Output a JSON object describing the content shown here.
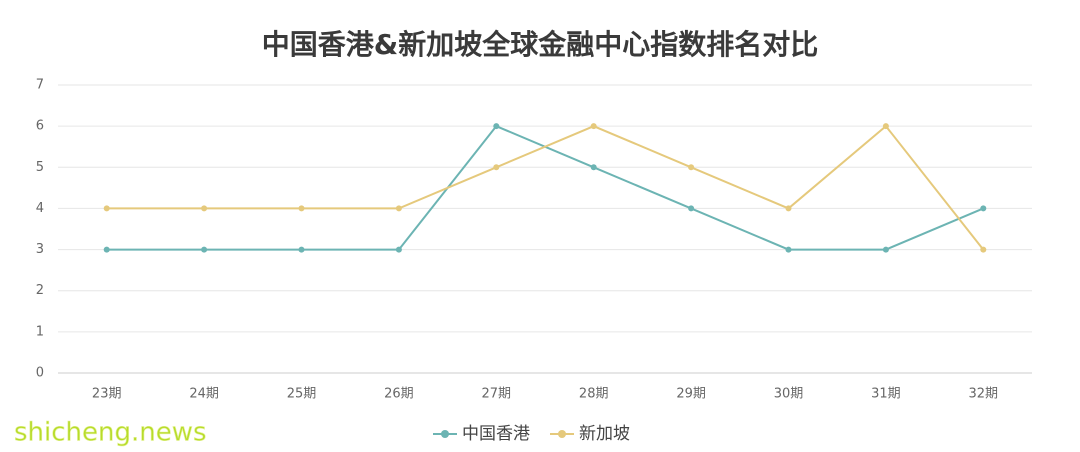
{
  "chart_data": {
    "type": "line",
    "title": "中国香港&新加坡全球金融中心指数排名对比",
    "categories": [
      "23期",
      "24期",
      "25期",
      "26期",
      "27期",
      "28期",
      "29期",
      "30期",
      "31期",
      "32期"
    ],
    "series": [
      {
        "name": "中国香港",
        "color": "#6cb4b3",
        "values": [
          3,
          3,
          3,
          3,
          6,
          5,
          4,
          3,
          3,
          4
        ]
      },
      {
        "name": "新加坡",
        "color": "#e5c97c",
        "values": [
          4,
          4,
          4,
          4,
          5,
          6,
          5,
          4,
          6,
          3
        ]
      }
    ],
    "ylim": [
      0,
      7
    ],
    "yticks": [
      0,
      1,
      2,
      3,
      4,
      5,
      6,
      7
    ],
    "grid": true,
    "legend": "bottom"
  },
  "watermark": "shicheng.news"
}
